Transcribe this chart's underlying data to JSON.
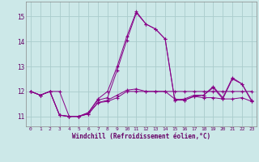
{
  "xlabel": "Windchill (Refroidissement éolien,°C)",
  "bg_color": "#cce8e8",
  "grid_color": "#aacccc",
  "line_color": "#880088",
  "x": [
    0,
    1,
    2,
    3,
    4,
    5,
    6,
    7,
    8,
    9,
    10,
    11,
    12,
    13,
    14,
    15,
    16,
    17,
    18,
    19,
    20,
    21,
    22,
    23
  ],
  "series1": [
    12.0,
    11.85,
    12.0,
    12.0,
    11.0,
    11.0,
    11.1,
    11.55,
    11.6,
    11.75,
    12.0,
    12.0,
    12.0,
    12.0,
    12.0,
    12.0,
    12.0,
    12.0,
    12.0,
    12.0,
    12.0,
    12.0,
    12.0,
    12.0
  ],
  "series2": [
    12.0,
    11.85,
    12.0,
    11.05,
    11.0,
    11.0,
    11.1,
    11.55,
    11.65,
    11.85,
    12.05,
    12.1,
    12.0,
    12.0,
    12.0,
    11.7,
    11.65,
    11.8,
    11.75,
    11.75,
    11.7,
    11.7,
    11.75,
    11.6
  ],
  "series3": [
    12.0,
    11.85,
    12.0,
    11.05,
    11.0,
    11.0,
    11.15,
    11.65,
    11.75,
    12.85,
    14.05,
    15.15,
    14.7,
    14.5,
    14.1,
    11.65,
    11.65,
    11.8,
    11.85,
    12.15,
    11.7,
    12.5,
    12.3,
    11.6
  ],
  "series4": [
    12.0,
    11.85,
    12.0,
    11.05,
    11.0,
    11.0,
    11.15,
    11.7,
    12.0,
    13.0,
    14.2,
    15.2,
    14.7,
    14.5,
    14.1,
    11.65,
    11.7,
    11.85,
    11.85,
    12.2,
    11.75,
    12.55,
    12.3,
    11.65
  ],
  "ylim": [
    10.6,
    15.6
  ],
  "yticks": [
    11,
    12,
    13,
    14,
    15
  ],
  "xticks": [
    0,
    1,
    2,
    3,
    4,
    5,
    6,
    7,
    8,
    9,
    10,
    11,
    12,
    13,
    14,
    15,
    16,
    17,
    18,
    19,
    20,
    21,
    22,
    23
  ]
}
